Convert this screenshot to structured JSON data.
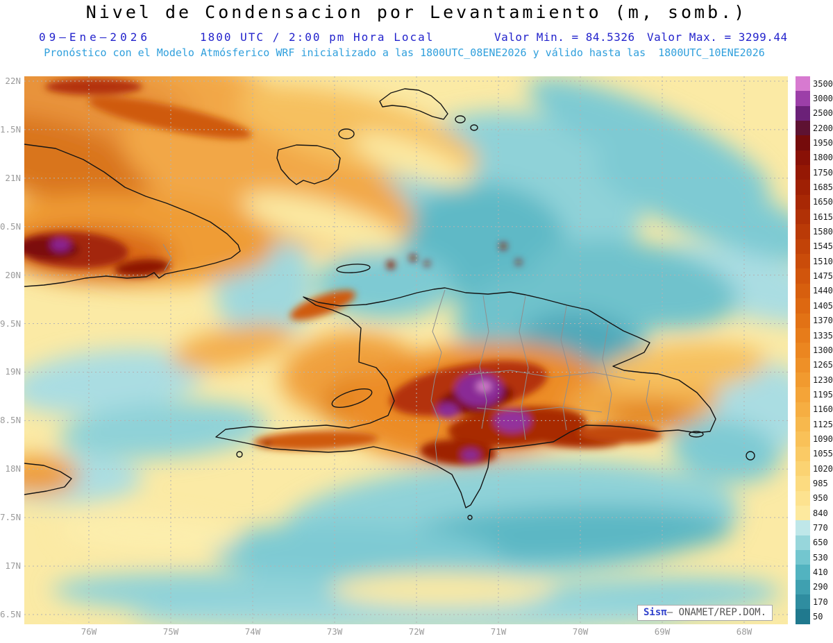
{
  "header": {
    "title": "Nivel de Condensacion por Levantamiento (m, somb.)",
    "date": "09—Ene—2026",
    "time": "1800 UTC / 2:00 pm Hora Local",
    "value_min_label": "Valor Min. = 84.5326",
    "value_max_label": "Valor Max. = 3299.44",
    "forecast_line": "Pronóstico con el Modelo Atmósferico WRF inicializado a las 1800UTC_08ENE2026 y válido hasta las  1800UTC_10ENE2026"
  },
  "map": {
    "lat_ticks": [
      "22N",
      "1.5N",
      "21N",
      "0.5N",
      "20N",
      "9.5N",
      "19N",
      "8.5N",
      "18N",
      "7.5N",
      "17N",
      "6.5N"
    ],
    "lon_ticks": [
      "76W",
      "75W",
      "74W",
      "73W",
      "72W",
      "71W",
      "70W",
      "69W",
      "68W"
    ],
    "attribution": {
      "brand": "Sisπ",
      "text": "— ONAMET/REP.DOM."
    }
  },
  "colorbar": {
    "levels": [
      {
        "value": "3500",
        "color": "#d77ad0"
      },
      {
        "value": "3000",
        "color": "#9c3fa8"
      },
      {
        "value": "2500",
        "color": "#6b2178"
      },
      {
        "value": "2200",
        "color": "#5e1232"
      },
      {
        "value": "1950",
        "color": "#750b0b"
      },
      {
        "value": "1800",
        "color": "#891106"
      },
      {
        "value": "1750",
        "color": "#951804"
      },
      {
        "value": "1685",
        "color": "#9f2004"
      },
      {
        "value": "1650",
        "color": "#a82805"
      },
      {
        "value": "1615",
        "color": "#b13106"
      },
      {
        "value": "1580",
        "color": "#ba3a07"
      },
      {
        "value": "1545",
        "color": "#c24308"
      },
      {
        "value": "1510",
        "color": "#ca4c0a"
      },
      {
        "value": "1475",
        "color": "#d1550c"
      },
      {
        "value": "1440",
        "color": "#d75f0e"
      },
      {
        "value": "1405",
        "color": "#dd6811"
      },
      {
        "value": "1370",
        "color": "#e27215"
      },
      {
        "value": "1335",
        "color": "#e77c1a"
      },
      {
        "value": "1300",
        "color": "#eb8620"
      },
      {
        "value": "1265",
        "color": "#ee9027"
      },
      {
        "value": "1230",
        "color": "#f19a2f"
      },
      {
        "value": "1195",
        "color": "#f4a438"
      },
      {
        "value": "1160",
        "color": "#f6ae42"
      },
      {
        "value": "1125",
        "color": "#f7b84d"
      },
      {
        "value": "1090",
        "color": "#f9c158"
      },
      {
        "value": "1055",
        "color": "#faca65"
      },
      {
        "value": "1020",
        "color": "#fbd372"
      },
      {
        "value": "985",
        "color": "#fcdb80"
      },
      {
        "value": "950",
        "color": "#fde28f"
      },
      {
        "value": "840",
        "color": "#fde99e"
      },
      {
        "value": "770",
        "color": "#bfe7e9"
      },
      {
        "value": "650",
        "color": "#97d6db"
      },
      {
        "value": "530",
        "color": "#73c6cf"
      },
      {
        "value": "410",
        "color": "#52b3c0"
      },
      {
        "value": "290",
        "color": "#3fa0b0"
      },
      {
        "value": "170",
        "color": "#2f8da0"
      },
      {
        "value": "50",
        "color": "#20798e"
      }
    ]
  },
  "chart_data": {
    "type": "heatmap",
    "title": "Nivel de Condensacion por Levantamiento (m, somb.)",
    "units": "m",
    "value_min": 84.5326,
    "value_max": 3299.44,
    "valid_time": "1800 UTC / 2:00 pm Hora Local",
    "run": "1800UTC_08ENE2026",
    "valid_until": "1800UTC_10ENE2026",
    "lat_range": [
      "16.5N",
      "22N"
    ],
    "lon_range": [
      "76W",
      "68W"
    ],
    "colorbar_levels": [
      50,
      170,
      290,
      410,
      530,
      650,
      770,
      840,
      950,
      985,
      1020,
      1055,
      1090,
      1125,
      1160,
      1195,
      1230,
      1265,
      1300,
      1335,
      1370,
      1405,
      1440,
      1475,
      1510,
      1545,
      1580,
      1615,
      1650,
      1685,
      1750,
      1800,
      1950,
      2200,
      2500,
      3000,
      3500
    ]
  }
}
